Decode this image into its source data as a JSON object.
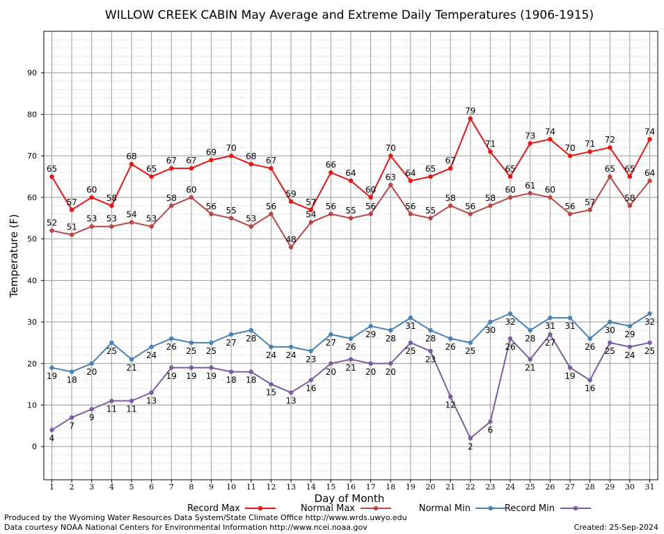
{
  "chart_data": {
    "type": "line",
    "title": "WILLOW CREEK CABIN May Average and Extreme Daily Temperatures (1906-1915)",
    "xlabel": "Day of Month",
    "ylabel": "Temperature (F)",
    "xlim": [
      0.6,
      31.4
    ],
    "ylim": [
      -8,
      100
    ],
    "y_ticks": [
      0,
      10,
      20,
      30,
      40,
      50,
      60,
      70,
      80,
      90
    ],
    "x": [
      1,
      2,
      3,
      4,
      5,
      6,
      7,
      8,
      9,
      10,
      11,
      12,
      13,
      14,
      15,
      16,
      17,
      18,
      19,
      20,
      21,
      22,
      23,
      24,
      25,
      26,
      27,
      28,
      29,
      30,
      31
    ],
    "grid": true,
    "legend_position": "bottom",
    "series": [
      {
        "name": "Record Max",
        "color": "#ee1111",
        "label_position": "above",
        "values": [
          65,
          57,
          60,
          58,
          68,
          65,
          67,
          67,
          69,
          70,
          68,
          67,
          59,
          57,
          66,
          64,
          60,
          70,
          64,
          65,
          67,
          79,
          71,
          65,
          73,
          74,
          70,
          71,
          72,
          65,
          74
        ]
      },
      {
        "name": "Normal Max",
        "color": "#bb4444",
        "label_position": "above",
        "values": [
          52,
          51,
          53,
          53,
          54,
          53,
          58,
          60,
          56,
          55,
          53,
          56,
          48,
          54,
          56,
          55,
          56,
          63,
          56,
          55,
          58,
          56,
          58,
          60,
          61,
          60,
          56,
          57,
          65,
          58,
          64
        ]
      },
      {
        "name": "Normal Min",
        "color": "#4682b4",
        "label_position": "below",
        "values": [
          19,
          18,
          20,
          25,
          21,
          24,
          26,
          25,
          25,
          27,
          28,
          24,
          24,
          23,
          27,
          26,
          29,
          28,
          31,
          28,
          26,
          25,
          30,
          32,
          28,
          31,
          31,
          26,
          30,
          29,
          32
        ]
      },
      {
        "name": "Record Min",
        "color": "#7a5d9e",
        "label_position": "below",
        "values": [
          4,
          7,
          9,
          11,
          11,
          13,
          19,
          19,
          19,
          18,
          18,
          15,
          13,
          16,
          20,
          21,
          20,
          20,
          25,
          23,
          12,
          2,
          6,
          26,
          21,
          27,
          19,
          16,
          25,
          24,
          25
        ]
      }
    ]
  },
  "footer": {
    "produced_by": "Produced by the Wyoming Water Resources Data System/State Climate Office http://www.wrds.uwyo.edu",
    "data_courtesy": "Data courtesy NOAA National Centers for Environmental Information http://www.ncei.noaa.gov",
    "created": "Created:  25-Sep-2024"
  }
}
